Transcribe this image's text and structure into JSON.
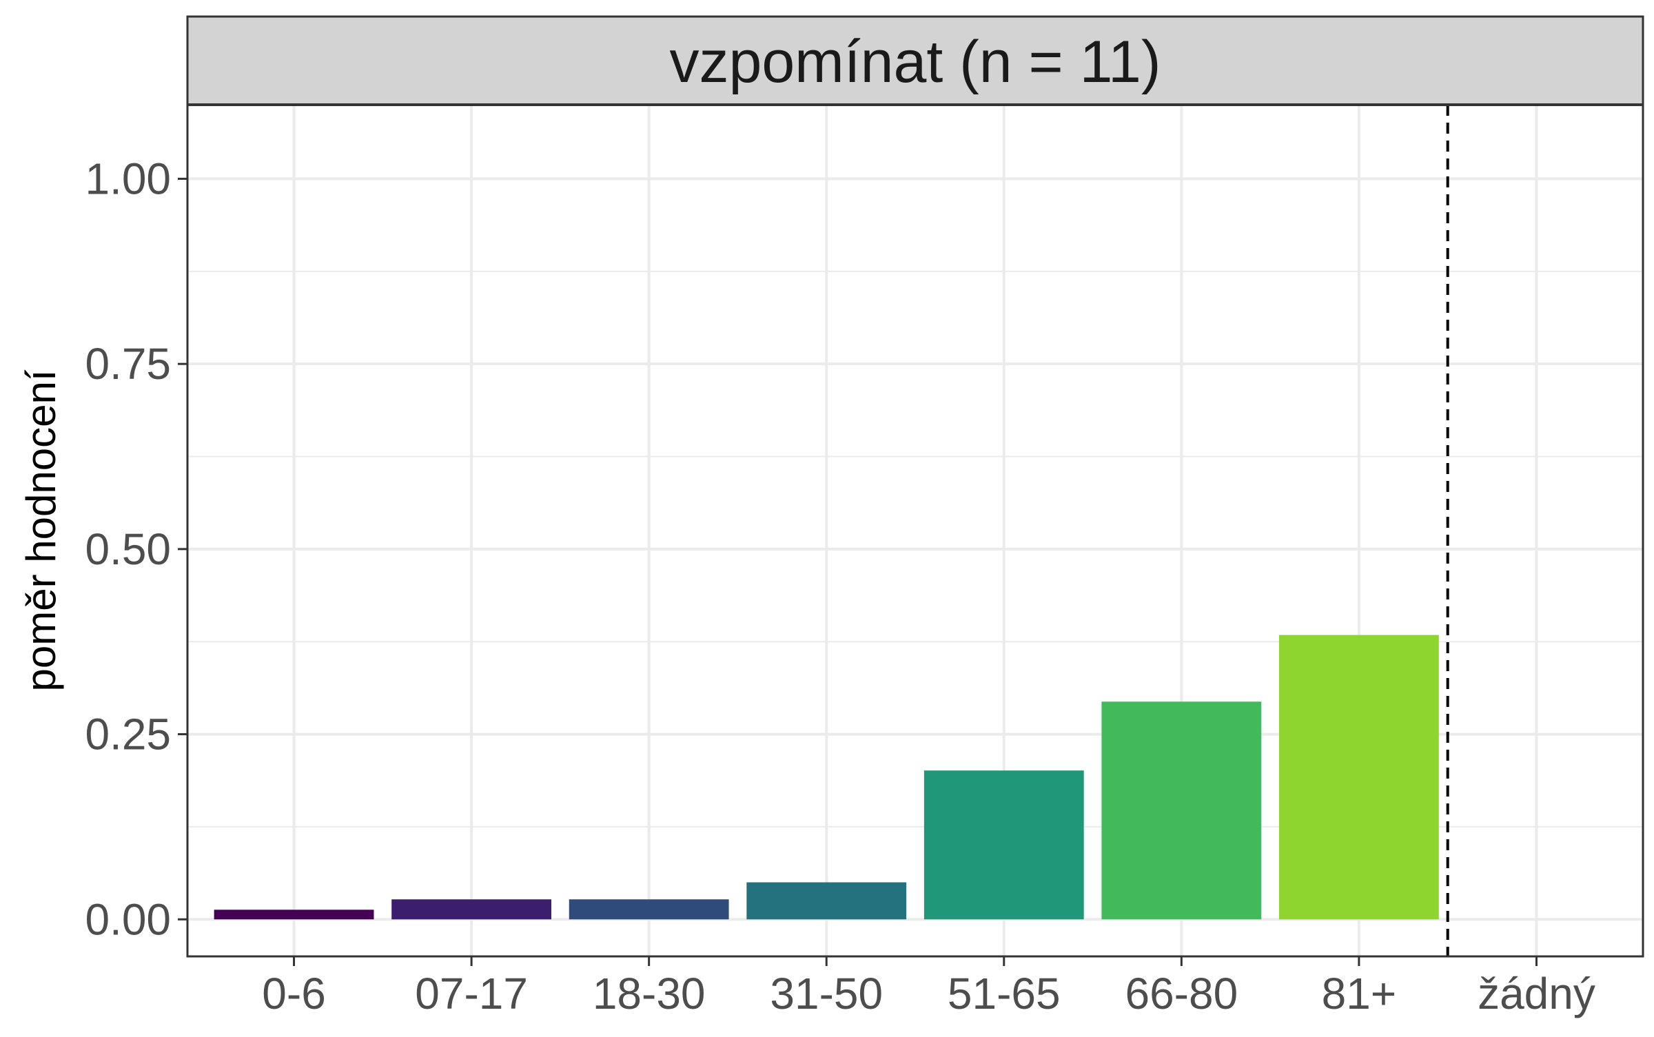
{
  "chart_data": {
    "type": "bar",
    "title": "",
    "facet_label": "vzpomínat (n = 11)",
    "xlabel": "",
    "ylabel": "poměr hodnocení",
    "categories": [
      "0-6",
      "07-17",
      "18-30",
      "31-50",
      "51-65",
      "66-80",
      "81+",
      "žádný"
    ],
    "values": [
      0.013,
      0.027,
      0.027,
      0.05,
      0.201,
      0.294,
      0.384,
      null
    ],
    "bar_colors": [
      "#440154",
      "#3b1f6e",
      "#2f4b7c",
      "#25727f",
      "#209778",
      "#42b95a",
      "#8ed62f",
      null
    ],
    "ylim": [
      -0.05,
      1.1
    ],
    "y_ticks": [
      0.0,
      0.25,
      0.5,
      0.75,
      1.0
    ],
    "y_tick_labels": [
      "0.00",
      "0.25",
      "0.50",
      "0.75",
      "1.00"
    ],
    "y_minor_ticks": [
      0.125,
      0.375,
      0.625,
      0.875
    ],
    "reference_line": {
      "between": [
        "81+",
        "žádný"
      ],
      "style": "dashed",
      "color": "#000000"
    },
    "grid": true,
    "legend": "none",
    "theme": {
      "grid_color": "#ebebeb",
      "strip_fill": "#d3d3d3",
      "panel_border": "#333333"
    }
  }
}
